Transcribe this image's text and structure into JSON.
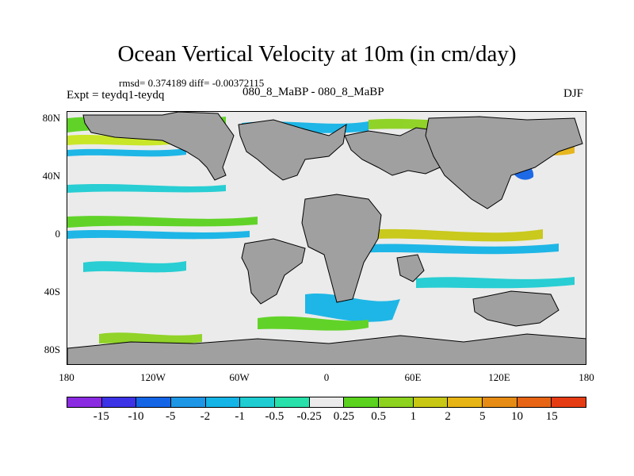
{
  "title": "Ocean Vertical Velocity at 10m (in cm/day)",
  "stats": "rmsd= 0.374189 diff= -0.00372115",
  "expt": "Expt = teydq1-teydq",
  "runs": "080_8_MaBP - 080_8_MaBP",
  "season": "DJF",
  "map": {
    "lat_labels": [
      "80N",
      "40N",
      "0",
      "40S",
      "80S"
    ],
    "lon_labels": [
      "180",
      "120W",
      "60W",
      "0",
      "60E",
      "120E",
      "180"
    ],
    "land_color": "#a0a0a0"
  },
  "colorbar": {
    "colors": [
      "#8a2be2",
      "#3c32e6",
      "#1464e6",
      "#1e96e6",
      "#14b4e6",
      "#1ecdd2",
      "#28e1aa",
      "#ebebeb",
      "#5ad21e",
      "#8cd21e",
      "#c8c814",
      "#e6b414",
      "#e68c14",
      "#e66414",
      "#e63c14"
    ],
    "labels": [
      "-15",
      "-10",
      "-5",
      "-2",
      "-1",
      "-0.5",
      "-0.25",
      "0.25",
      "0.5",
      "1",
      "2",
      "5",
      "10",
      "15"
    ]
  }
}
